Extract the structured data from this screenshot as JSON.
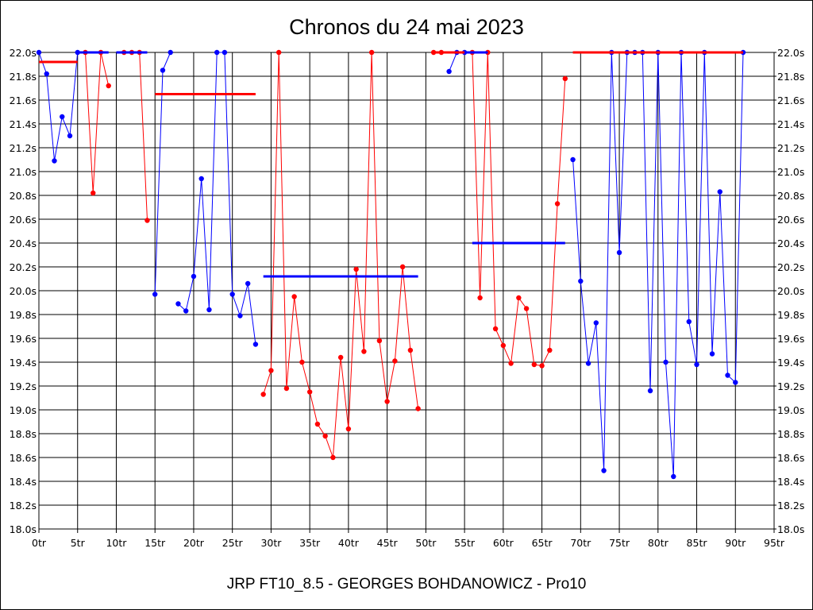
{
  "chart_data": {
    "type": "line",
    "title": "Chronos du 24 mai 2023",
    "footer": "JRP FT10_8.5 - GEORGES BOHDANOWICZ - Pro10",
    "x_ticks": [
      "0tr",
      "5tr",
      "10tr",
      "15tr",
      "20tr",
      "25tr",
      "30tr",
      "35tr",
      "40tr",
      "45tr",
      "50tr",
      "55tr",
      "60tr",
      "65tr",
      "70tr",
      "75tr",
      "80tr",
      "85tr",
      "90tr",
      "95tr"
    ],
    "y_ticks": [
      "18.0s",
      "18.2s",
      "18.4s",
      "18.6s",
      "18.8s",
      "19.0s",
      "19.2s",
      "19.4s",
      "19.6s",
      "19.8s",
      "20.0s",
      "20.2s",
      "20.4s",
      "20.6s",
      "20.8s",
      "21.0s",
      "21.2s",
      "21.4s",
      "21.6s",
      "21.8s",
      "22.0s"
    ],
    "xlim": [
      0,
      95
    ],
    "ylim": [
      18.0,
      22.0
    ],
    "grid": true,
    "colors": {
      "blue": "#0000ff",
      "red": "#ff0000"
    },
    "segments": [
      {
        "color": "blue",
        "points": [
          [
            0,
            22.0
          ],
          [
            1,
            21.82
          ],
          [
            2,
            21.09
          ],
          [
            3,
            21.46
          ],
          [
            4,
            21.3
          ],
          [
            5,
            22.0
          ]
        ]
      },
      {
        "color": "red",
        "points": [
          [
            6,
            22.0
          ],
          [
            7,
            20.82
          ],
          [
            8,
            22.0
          ],
          [
            9,
            21.72
          ]
        ]
      },
      {
        "color": "red",
        "points": [
          [
            11,
            22.0
          ],
          [
            12,
            22.0
          ],
          [
            13,
            22.0
          ],
          [
            14,
            20.59
          ]
        ]
      },
      {
        "color": "blue",
        "points": [
          [
            15,
            19.97
          ],
          [
            16,
            21.85
          ],
          [
            17,
            22.0
          ]
        ]
      },
      {
        "color": "blue",
        "points": [
          [
            18,
            19.89
          ],
          [
            19,
            19.83
          ],
          [
            20,
            20.12
          ],
          [
            21,
            20.94
          ],
          [
            22,
            19.84
          ],
          [
            23,
            22.0
          ],
          [
            24,
            22.0
          ],
          [
            25,
            19.97
          ],
          [
            26,
            19.79
          ],
          [
            27,
            20.06
          ],
          [
            28,
            19.55
          ]
        ]
      },
      {
        "color": "red",
        "points": [
          [
            29,
            19.13
          ],
          [
            30,
            19.33
          ],
          [
            31,
            22.0
          ],
          [
            32,
            19.18
          ],
          [
            33,
            19.95
          ],
          [
            34,
            19.4
          ],
          [
            35,
            19.15
          ],
          [
            36,
            18.88
          ],
          [
            37,
            18.78
          ],
          [
            38,
            18.6
          ],
          [
            39,
            19.44
          ],
          [
            40,
            18.84
          ],
          [
            41,
            20.18
          ],
          [
            42,
            19.49
          ],
          [
            43,
            22.0
          ],
          [
            44,
            19.58
          ],
          [
            45,
            19.07
          ],
          [
            46,
            19.41
          ],
          [
            47,
            20.2
          ],
          [
            48,
            19.5
          ],
          [
            49,
            19.01
          ]
        ]
      },
      {
        "color": "red",
        "points": [
          [
            51,
            22.0
          ],
          [
            52,
            22.0
          ]
        ]
      },
      {
        "color": "blue",
        "points": [
          [
            53,
            21.84
          ],
          [
            54,
            22.0
          ],
          [
            55,
            22.0
          ]
        ]
      },
      {
        "color": "red",
        "points": [
          [
            56,
            22.0
          ],
          [
            57,
            19.94
          ],
          [
            58,
            22.0
          ],
          [
            59,
            19.68
          ],
          [
            60,
            19.54
          ],
          [
            61,
            19.39
          ],
          [
            62,
            19.94
          ],
          [
            63,
            19.85
          ],
          [
            64,
            19.38
          ],
          [
            65,
            19.37
          ],
          [
            66,
            19.5
          ],
          [
            67,
            20.73
          ],
          [
            68,
            21.78
          ]
        ]
      },
      {
        "color": "blue",
        "points": [
          [
            69,
            21.1
          ],
          [
            70,
            20.08
          ],
          [
            71,
            19.39
          ],
          [
            72,
            19.73
          ],
          [
            73,
            18.49
          ],
          [
            74,
            22.0
          ],
          [
            75,
            20.32
          ],
          [
            76,
            22.0
          ],
          [
            77,
            22.0
          ],
          [
            78,
            22.0
          ],
          [
            79,
            19.16
          ],
          [
            80,
            22.0
          ],
          [
            81,
            19.4
          ],
          [
            82,
            18.44
          ],
          [
            83,
            22.0
          ],
          [
            84,
            19.74
          ],
          [
            85,
            19.38
          ],
          [
            86,
            22.0
          ],
          [
            87,
            19.47
          ],
          [
            88,
            20.83
          ],
          [
            89,
            19.29
          ],
          [
            90,
            19.23
          ],
          [
            91,
            22.0
          ]
        ]
      }
    ],
    "averages": [
      {
        "color": "red",
        "x": [
          0,
          5
        ],
        "y": 21.92
      },
      {
        "color": "blue",
        "x": [
          5,
          9
        ],
        "y": 22.0
      },
      {
        "color": "blue",
        "x": [
          10,
          14
        ],
        "y": 22.0
      },
      {
        "color": "red",
        "x": [
          15,
          28
        ],
        "y": 21.65
      },
      {
        "color": "blue",
        "x": [
          29,
          49
        ],
        "y": 20.12
      },
      {
        "color": "red",
        "x": [
          51,
          55
        ],
        "y": 22.0
      },
      {
        "color": "blue",
        "x": [
          55,
          58
        ],
        "y": 22.0
      },
      {
        "color": "blue",
        "x": [
          56,
          68
        ],
        "y": 20.4
      },
      {
        "color": "red",
        "x": [
          69,
          91
        ],
        "y": 22.0
      }
    ]
  }
}
